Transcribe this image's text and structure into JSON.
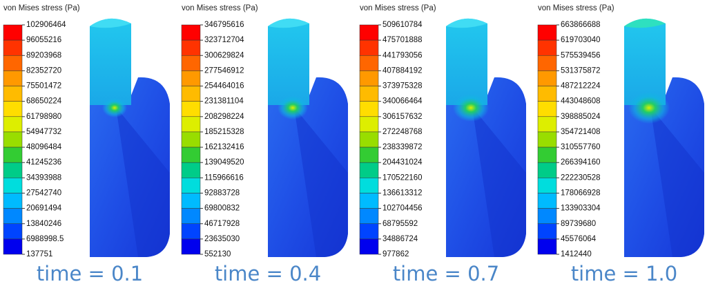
{
  "panels": [
    {
      "title": "von Mises stress (Pa)",
      "caption": "time = 0.1",
      "ticks": [
        "102906464",
        "96055216",
        "89203968",
        "82352720",
        "75501472",
        "68650224",
        "61798980",
        "54947732",
        "48096484",
        "41245236",
        "34393988",
        "27542740",
        "20691494",
        "13840246",
        "6988998.5",
        "137751"
      ]
    },
    {
      "title": "von Mises stress (Pa)",
      "caption": "time = 0.4",
      "ticks": [
        "346795616",
        "323712704",
        "300629824",
        "277546912",
        "254464016",
        "231381104",
        "208298224",
        "185215328",
        "162132416",
        "139049520",
        "115966616",
        "92883728",
        "69800832",
        "46717928",
        "23635030",
        "552130"
      ]
    },
    {
      "title": "von Mises stress (Pa)",
      "caption": "time = 0.7",
      "ticks": [
        "509610784",
        "475701888",
        "441793056",
        "407884192",
        "373975328",
        "340066464",
        "306157632",
        "272248768",
        "238339872",
        "204431024",
        "170522160",
        "136613312",
        "102704456",
        "68795592",
        "34886724",
        "977862"
      ]
    },
    {
      "title": "von Mises stress (Pa)",
      "caption": "time = 1.0",
      "ticks": [
        "663866688",
        "619703040",
        "575539456",
        "531375872",
        "487212224",
        "443048608",
        "398885024",
        "354721408",
        "310557760",
        "266394160",
        "222230528",
        "178066928",
        "133903304",
        "89739680",
        "45576064",
        "1412440"
      ]
    }
  ]
}
